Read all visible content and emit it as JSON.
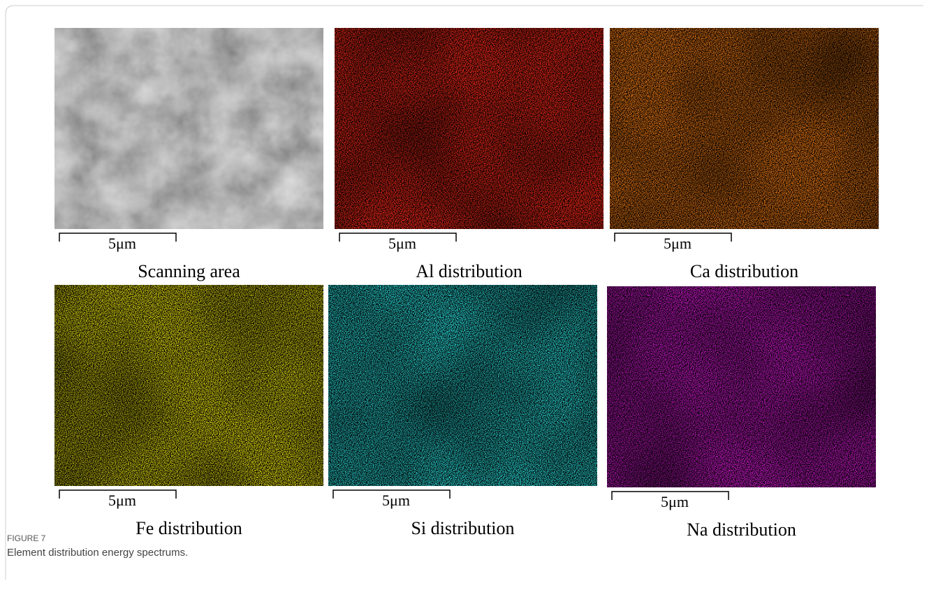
{
  "panels": [
    {
      "scale": "5μm",
      "caption": "Scanning area"
    },
    {
      "scale": "5μm",
      "caption": "Al distribution"
    },
    {
      "scale": "5μm",
      "caption": "Ca distribution"
    },
    {
      "scale": "5μm",
      "caption": "Fe distribution"
    },
    {
      "scale": "5μm",
      "caption": "Si distribution"
    },
    {
      "scale": "5μm",
      "caption": "Na distribution"
    }
  ],
  "figure": {
    "label": "FIGURE 7",
    "caption": "Element distribution energy spectrums."
  }
}
